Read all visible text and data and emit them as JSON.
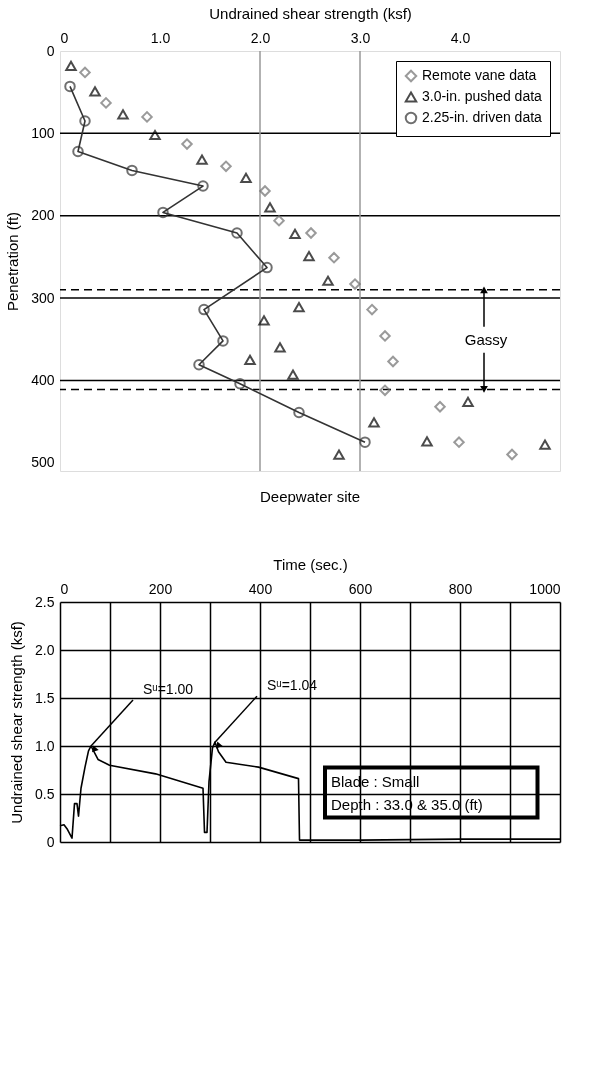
{
  "chart_data": [
    {
      "type": "scatter",
      "title": "Deepwater site",
      "xlabel": "Undrained shear strength (ksf)",
      "ylabel": "Penetration (ft)",
      "xlim": [
        0,
        5
      ],
      "xticks": [
        0,
        {
          "value": 1,
          "label": "1.0"
        },
        {
          "value": 2,
          "label": "2.0"
        },
        {
          "value": 3,
          "label": "3.0"
        },
        {
          "value": 4,
          "label": "4.0"
        }
      ],
      "ylim": [
        510,
        0
      ],
      "yticks": [
        0,
        100,
        200,
        300,
        400,
        500
      ],
      "legend": "top right",
      "grid": false,
      "series": [
        {
          "name": "Remote vane data",
          "type": "scatter",
          "marker": "diamond",
          "color": "#707070",
          "x": [
            0.25,
            0.46,
            0.87,
            1.27,
            1.66,
            2.05,
            2.19,
            2.51,
            2.74,
            2.95,
            3.12,
            3.25,
            3.33,
            3.25,
            3.8,
            3.99,
            4.52
          ],
          "values": [
            26,
            63,
            80,
            113,
            140,
            170,
            206,
            221,
            251,
            283,
            314,
            346,
            377,
            412,
            432,
            475,
            490
          ]
        },
        {
          "name": "3.0-in. pushed data",
          "type": "scatter",
          "marker": "triangle",
          "color": "#000000",
          "x": [
            0.11,
            0.35,
            0.63,
            0.95,
            1.42,
            1.86,
            2.1,
            2.35,
            2.49,
            2.68,
            2.39,
            2.04,
            2.2,
            1.9,
            2.33,
            4.08,
            3.14,
            3.67,
            4.85,
            2.79
          ],
          "values": [
            18,
            49,
            77,
            102,
            132,
            154,
            190,
            222,
            249,
            279,
            311,
            327,
            360,
            375,
            393,
            426,
            451,
            474,
            478,
            490
          ]
        },
        {
          "name": "2.25-in. driven data",
          "type": "line",
          "marker": "circle",
          "color": "#333333",
          "x": [
            0.1,
            0.25,
            0.18,
            0.72,
            1.43,
            1.03,
            1.77,
            2.07,
            1.44,
            1.63,
            1.39,
            1.8,
            2.39,
            3.05
          ],
          "values": [
            43,
            85,
            122,
            145,
            164,
            196,
            221,
            263,
            314,
            352,
            381,
            404,
            439,
            475
          ]
        }
      ],
      "ref_lines": [
        {
          "axis": "y",
          "value": 100,
          "color": "#000000"
        },
        {
          "axis": "y",
          "value": 200,
          "color": "#000000"
        },
        {
          "axis": "y",
          "value": 300,
          "color": "#000000"
        },
        {
          "axis": "y",
          "value": 400,
          "color": "#000000"
        },
        {
          "axis": "y",
          "value": 290,
          "color": "#000000",
          "line_style": "dashed"
        },
        {
          "axis": "y",
          "value": 411,
          "color": "#000000",
          "line_style": "dashed"
        },
        {
          "axis": "x",
          "value": 2,
          "color": "#999999"
        },
        {
          "axis": "x",
          "value": 3,
          "color": "#999999"
        }
      ],
      "annotations": [
        {
          "text": "Gassy",
          "x": 4.24,
          "y": 290
        }
      ]
    },
    {
      "type": "line",
      "xlabel": "Time (sec.)",
      "ylabel": "Undrained shear strength (ksf)",
      "xlim": [
        0,
        1000
      ],
      "xticks": [
        0,
        {
          "value": 100,
          "label": null
        },
        200,
        {
          "value": 300,
          "label": null
        },
        400,
        {
          "value": 500,
          "label": null
        },
        600,
        {
          "value": 700,
          "label": null
        },
        800,
        {
          "value": 900,
          "label": null
        },
        1000
      ],
      "ylim": [
        0,
        2.5
      ],
      "yticks": [
        0,
        0.5,
        {
          "value": 1,
          "label": "1.0"
        },
        1.5,
        {
          "value": 2,
          "label": "2.0"
        },
        2.5
      ],
      "grid": true,
      "series": [
        {
          "color": "#000000",
          "x": [
            0,
            8,
            15,
            24,
            29,
            34,
            37,
            42,
            50,
            57,
            62,
            76,
            99,
            191,
            286,
            289,
            294,
            298,
            305,
            310,
            317,
            332,
            397,
            477,
            479,
            485,
            600,
            800,
            1000
          ],
          "values": [
            0.17,
            0.18,
            0.13,
            0.04,
            0.4,
            0.4,
            0.27,
            0.56,
            0.78,
            0.95,
            1.0,
            0.86,
            0.8,
            0.71,
            0.56,
            0.1,
            0.1,
            0.63,
            0.98,
            1.04,
            0.94,
            0.83,
            0.78,
            0.66,
            0.02,
            0.02,
            0.02,
            0.03,
            0.03
          ]
        }
      ],
      "annotations": [
        {
          "text": "Sᵘ=1.00",
          "x": 62,
          "y": 1.0
        },
        {
          "text": "Sᵘ=1.04",
          "x": 310,
          "y": 1.04
        },
        "Blade : Small",
        "Depth : 33.0 & 35.0 (ft)"
      ]
    }
  ]
}
